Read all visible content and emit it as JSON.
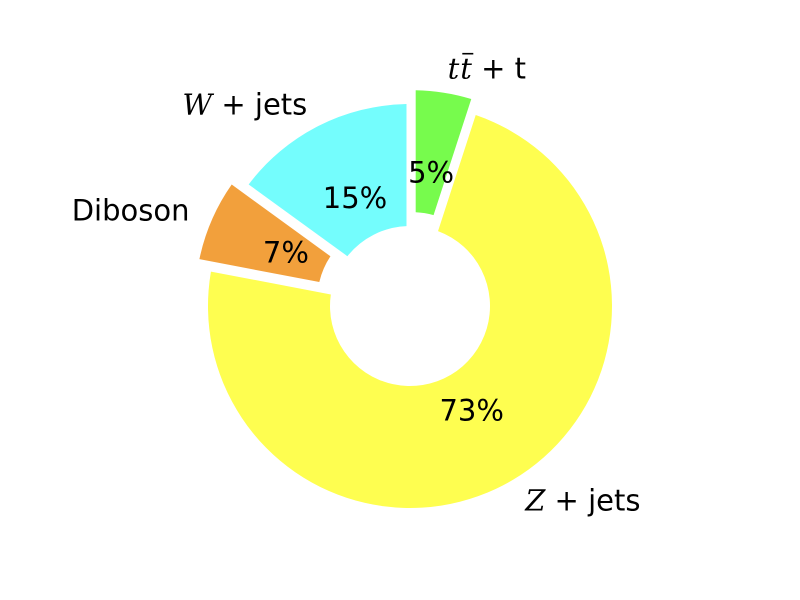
{
  "chart_data": {
    "type": "pie",
    "donut": true,
    "categories": [
      "tt̄ + t",
      "Z + jets",
      "Diboson",
      "W + jets"
    ],
    "values": [
      5,
      73,
      7,
      15
    ],
    "percent_labels": [
      "5%",
      "73%",
      "7%",
      "15%"
    ],
    "colors": [
      "#77fb4d",
      "#fefe50",
      "#f2a03c",
      "#74fdfd"
    ],
    "exploded": [
      true,
      false,
      true,
      false
    ],
    "start_angle_deg": 90,
    "direction": "clockwise",
    "legend": "none",
    "title": ""
  }
}
